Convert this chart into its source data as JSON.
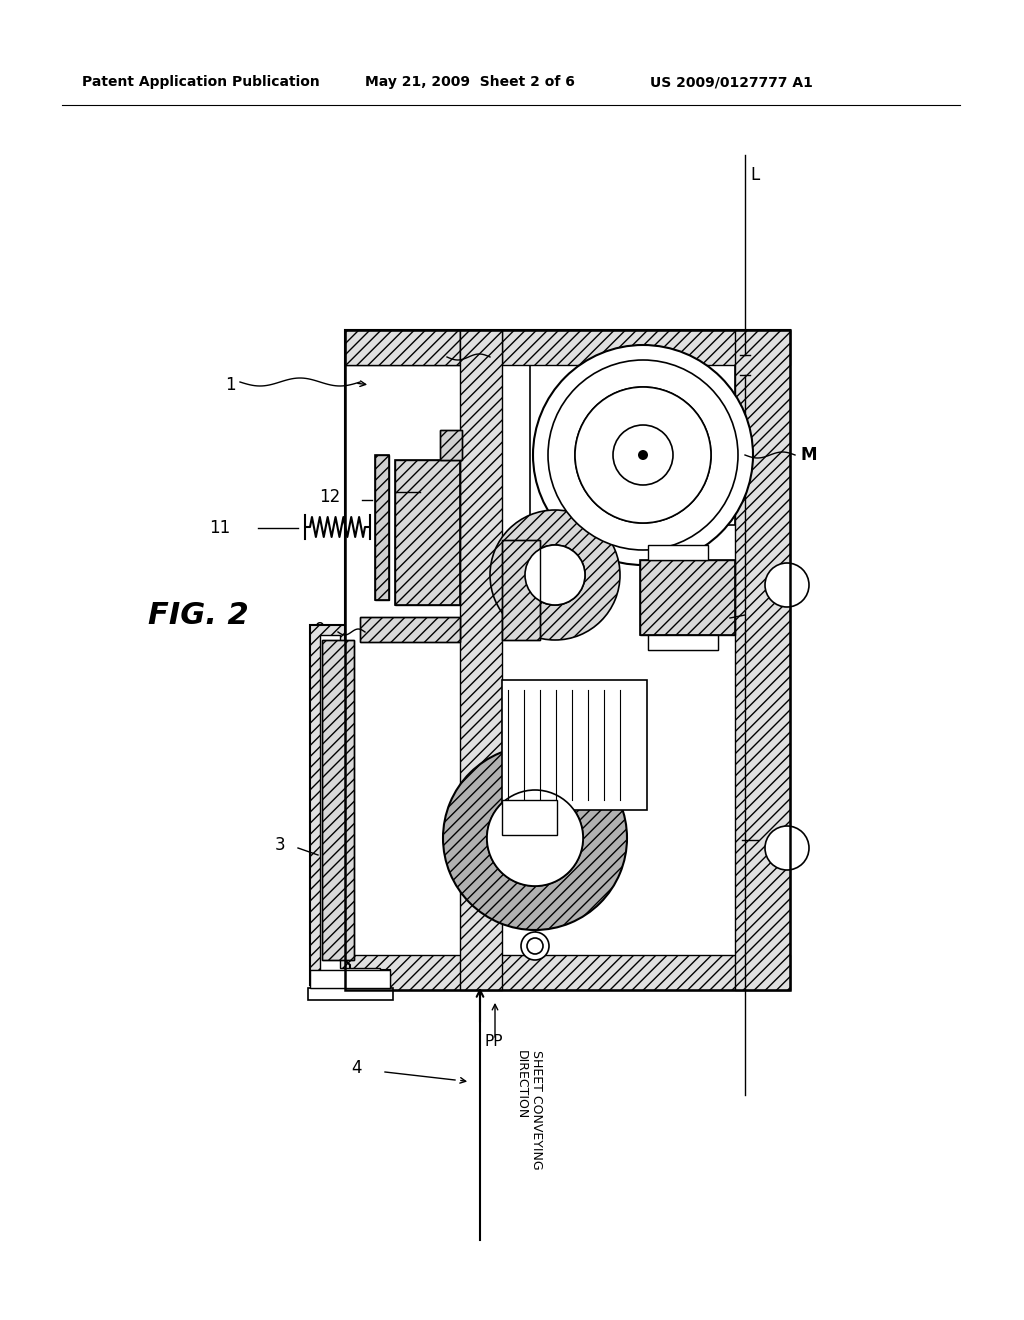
{
  "bg_color": "#ffffff",
  "header_left": "Patent Application Publication",
  "header_mid": "May 21, 2009  Sheet 2 of 6",
  "header_right": "US 2009/0127777 A1",
  "line_color": "#000000",
  "fig_label": "FIG. 2"
}
